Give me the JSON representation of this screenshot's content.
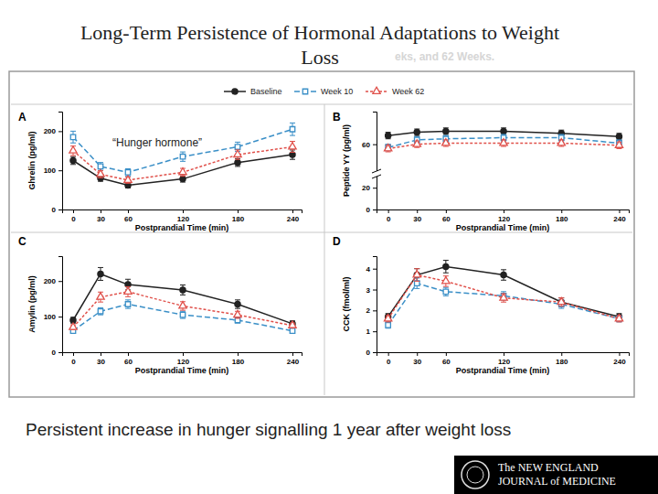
{
  "title": [
    "Long-Term Persistence of Hormonal Adaptations to Weight",
    "Loss"
  ],
  "subtitle": "eks, and 62 Weeks.",
  "caption": "Persistent increase in hunger signalling 1 year after weight loss",
  "logo": [
    "The NEW ENGLAND",
    "JOURNAL of MEDICINE"
  ],
  "chart_data": [
    {
      "type": "line",
      "title": "A",
      "annotation": "“Hunger hormone”",
      "x_label": "Postprandial Time (min)",
      "y_label": "Ghrelin (pg/ml)",
      "x": [
        0,
        30,
        60,
        120,
        180,
        240
      ],
      "xlim": [
        -12,
        250
      ],
      "xticks": [
        0,
        30,
        60,
        120,
        180,
        240
      ],
      "ylim": [
        0,
        250
      ],
      "yticks": [
        0,
        100,
        200
      ],
      "grid": false,
      "legend": "top",
      "series": [
        {
          "name": "Baseline",
          "color": "#222222",
          "marker": "circle",
          "line_style": "solid",
          "values": [
            125,
            80,
            62,
            78,
            120,
            140
          ],
          "errors": [
            10,
            8,
            7,
            8,
            10,
            12
          ]
        },
        {
          "name": "Week 10",
          "color": "#3a8fc7",
          "marker": "square",
          "line_style": "dashed",
          "values": [
            185,
            110,
            95,
            135,
            160,
            205
          ],
          "errors": [
            15,
            10,
            9,
            12,
            12,
            16
          ]
        },
        {
          "name": "Week 62",
          "color": "#e0504a",
          "marker": "triangle",
          "line_style": "dotted",
          "values": [
            150,
            90,
            75,
            95,
            140,
            160
          ],
          "errors": [
            12,
            9,
            8,
            10,
            12,
            14
          ]
        }
      ]
    },
    {
      "type": "line",
      "title": "B",
      "x_label": "Postprandial Time (min)",
      "y_label": "Peptide YY (pg/ml)",
      "x": [
        0,
        30,
        60,
        120,
        180,
        240
      ],
      "xlim": [
        -12,
        250
      ],
      "xticks": [
        0,
        30,
        60,
        120,
        180,
        240
      ],
      "ylim": [
        0,
        90
      ],
      "yticks": [
        0,
        20,
        60
      ],
      "grid": false,
      "series": [
        {
          "color": "#222222",
          "marker": "circle",
          "line_style": "solid",
          "values": [
            68,
            71,
            72,
            72,
            70,
            67
          ],
          "errors": [
            3,
            3,
            3,
            3,
            3,
            3
          ]
        },
        {
          "color": "#3a8fc7",
          "marker": "square",
          "line_style": "dashed",
          "values": [
            57,
            64,
            65,
            66,
            66,
            61
          ],
          "errors": [
            3,
            3,
            3,
            3,
            3,
            3
          ]
        },
        {
          "color": "#e0504a",
          "marker": "triangle",
          "line_style": "dotted",
          "values": [
            56,
            60,
            61,
            61,
            61,
            59
          ],
          "errors": [
            3,
            3,
            3,
            3,
            3,
            3
          ]
        }
      ]
    },
    {
      "type": "line",
      "title": "C",
      "x_label": "Postprandial Time (min)",
      "y_label": "Amylin (pg/ml)",
      "x": [
        0,
        30,
        60,
        120,
        180,
        240
      ],
      "xlim": [
        -12,
        250
      ],
      "xticks": [
        0,
        30,
        60,
        120,
        180,
        240
      ],
      "ylim": [
        0,
        270
      ],
      "yticks": [
        0,
        100,
        200
      ],
      "grid": false,
      "series": [
        {
          "color": "#222222",
          "marker": "circle",
          "line_style": "solid",
          "values": [
            90,
            220,
            190,
            175,
            135,
            80
          ],
          "errors": [
            8,
            18,
            15,
            14,
            12,
            8
          ]
        },
        {
          "color": "#3a8fc7",
          "marker": "square",
          "line_style": "dashed",
          "values": [
            60,
            115,
            135,
            105,
            90,
            60
          ],
          "errors": [
            6,
            10,
            12,
            10,
            8,
            6
          ]
        },
        {
          "color": "#e0504a",
          "marker": "triangle",
          "line_style": "dotted",
          "values": [
            70,
            155,
            170,
            130,
            105,
            75
          ],
          "errors": [
            7,
            14,
            14,
            12,
            10,
            7
          ]
        }
      ]
    },
    {
      "type": "line",
      "title": "D",
      "x_label": "Postprandial Time (min)",
      "y_label": "CCK (fmol/ml)",
      "x": [
        0,
        30,
        60,
        120,
        180,
        240
      ],
      "xlim": [
        -12,
        250
      ],
      "xticks": [
        0,
        30,
        60,
        120,
        180,
        240
      ],
      "ylim": [
        0,
        4.6
      ],
      "yticks": [
        0,
        1,
        2,
        3,
        4
      ],
      "grid": false,
      "series": [
        {
          "color": "#222222",
          "marker": "circle",
          "line_style": "solid",
          "values": [
            1.7,
            3.7,
            4.1,
            3.7,
            2.4,
            1.7
          ],
          "errors": [
            0.15,
            0.3,
            0.3,
            0.25,
            0.2,
            0.15
          ]
        },
        {
          "color": "#3a8fc7",
          "marker": "square",
          "line_style": "dashed",
          "values": [
            1.3,
            3.3,
            2.9,
            2.7,
            2.3,
            1.6
          ],
          "errors": [
            0.15,
            0.25,
            0.2,
            0.2,
            0.2,
            0.15
          ]
        },
        {
          "color": "#e0504a",
          "marker": "triangle",
          "line_style": "dotted",
          "values": [
            1.6,
            3.7,
            3.4,
            2.6,
            2.4,
            1.6
          ],
          "errors": [
            0.15,
            0.3,
            0.25,
            0.2,
            0.2,
            0.15
          ]
        }
      ]
    }
  ]
}
